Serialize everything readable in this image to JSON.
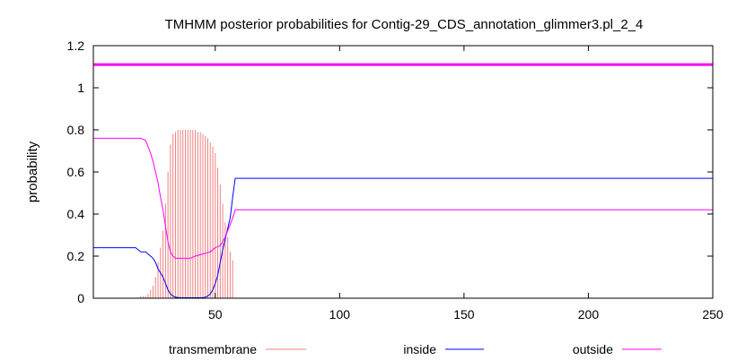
{
  "chart_data": {
    "type": "line",
    "title": "TMHMM posterior probabilities for Contig-29_CDS_annotation_glimmer3.pl_2_4",
    "xlabel": "",
    "ylabel": "probability",
    "xlim": [
      1,
      250
    ],
    "ylim": [
      0,
      1.2
    ],
    "x_ticks": [
      50,
      100,
      150,
      200,
      250
    ],
    "y_ticks": [
      0,
      0.2,
      0.4,
      0.6,
      0.8,
      1,
      1.2
    ],
    "y_tick_labels": [
      "0",
      "0.2",
      "0.4",
      "0.6",
      "0.8",
      "1",
      "1.2"
    ],
    "grid": false,
    "legend_position": "bottom",
    "reference_line": {
      "y": 1.11,
      "color": "#ff00ff"
    },
    "series": [
      {
        "name": "transmembrane",
        "color": "#f08080",
        "style": "impulses",
        "x": [
          20,
          21,
          22,
          23,
          24,
          25,
          26,
          27,
          28,
          29,
          30,
          31,
          32,
          33,
          34,
          35,
          36,
          37,
          38,
          39,
          40,
          41,
          42,
          43,
          44,
          45,
          46,
          47,
          48,
          49,
          50,
          51,
          52,
          53,
          54,
          55,
          56,
          57
        ],
        "values": [
          0.01,
          0.01,
          0.01,
          0.02,
          0.04,
          0.06,
          0.1,
          0.17,
          0.24,
          0.32,
          0.45,
          0.6,
          0.73,
          0.78,
          0.79,
          0.8,
          0.8,
          0.8,
          0.8,
          0.8,
          0.8,
          0.8,
          0.8,
          0.79,
          0.79,
          0.78,
          0.77,
          0.76,
          0.74,
          0.72,
          0.69,
          0.62,
          0.54,
          0.45,
          0.36,
          0.29,
          0.22,
          0.18
        ]
      },
      {
        "name": "inside",
        "color": "#0000ff",
        "style": "line",
        "x": [
          1,
          18,
          19,
          20,
          21,
          22,
          23,
          24,
          25,
          26,
          27,
          28,
          29,
          30,
          31,
          32,
          33,
          34,
          35,
          36,
          40,
          45,
          46,
          47,
          48,
          49,
          50,
          51,
          52,
          53,
          54,
          55,
          56,
          57,
          58,
          70,
          195,
          250
        ],
        "values": [
          0.24,
          0.24,
          0.23,
          0.22,
          0.22,
          0.22,
          0.21,
          0.2,
          0.19,
          0.17,
          0.14,
          0.12,
          0.1,
          0.07,
          0.04,
          0.02,
          0.01,
          0.005,
          0.003,
          0.002,
          0.002,
          0.002,
          0.005,
          0.01,
          0.02,
          0.04,
          0.07,
          0.11,
          0.17,
          0.23,
          0.28,
          0.33,
          0.38,
          0.48,
          0.57,
          0.57,
          0.57,
          0.57
        ]
      },
      {
        "name": "outside",
        "color": "#ff00ff",
        "style": "line",
        "x": [
          1,
          20,
          22,
          23,
          24,
          25,
          26,
          27,
          28,
          29,
          30,
          31,
          32,
          33,
          34,
          35,
          36,
          38,
          40,
          42,
          45,
          48,
          50,
          52,
          53,
          54,
          55,
          56,
          57,
          58,
          70,
          150,
          250
        ],
        "values": [
          0.76,
          0.76,
          0.75,
          0.72,
          0.69,
          0.65,
          0.6,
          0.55,
          0.48,
          0.42,
          0.34,
          0.27,
          0.22,
          0.2,
          0.19,
          0.19,
          0.19,
          0.19,
          0.19,
          0.2,
          0.21,
          0.22,
          0.24,
          0.25,
          0.27,
          0.29,
          0.32,
          0.35,
          0.38,
          0.42,
          0.42,
          0.42,
          0.42
        ]
      }
    ]
  }
}
